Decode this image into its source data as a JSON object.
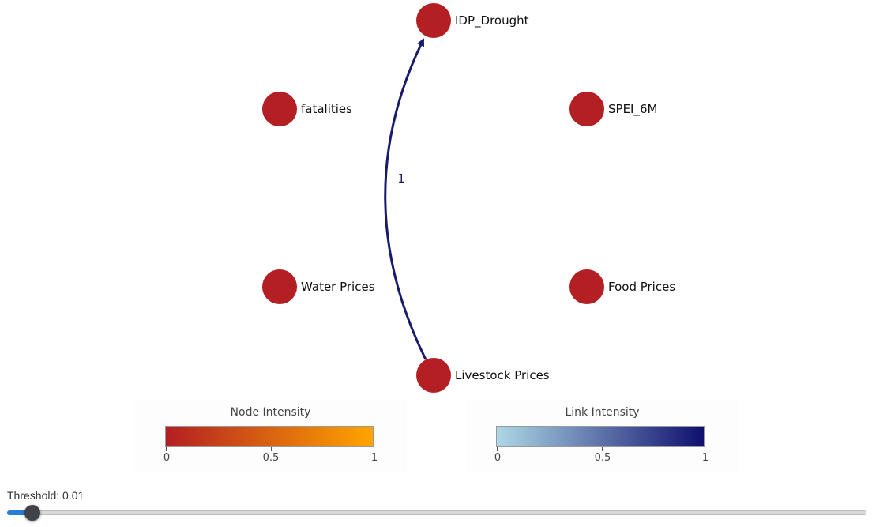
{
  "graph": {
    "nodes": [
      {
        "id": "idp",
        "label": "IDP_Drought",
        "color": "#b31f22"
      },
      {
        "id": "fatalities",
        "label": "fatalities",
        "color": "#b31f22"
      },
      {
        "id": "spei",
        "label": "SPEI_6M",
        "color": "#b31f22"
      },
      {
        "id": "water",
        "label": "Water Prices",
        "color": "#b31f22"
      },
      {
        "id": "food",
        "label": "Food Prices",
        "color": "#b31f22"
      },
      {
        "id": "livestock",
        "label": "Livestock Prices",
        "color": "#b31f22"
      }
    ],
    "edges": [
      {
        "source": "livestock",
        "target": "idp",
        "label": "1",
        "color": "#1a1a6e"
      }
    ]
  },
  "legends": {
    "node": {
      "title": "Node Intensity",
      "ticks": [
        "0",
        "0.5",
        "1"
      ],
      "color_low": "#b31f22",
      "color_high": "#ffa500"
    },
    "link": {
      "title": "Link Intensity",
      "ticks": [
        "0",
        "0.5",
        "1"
      ],
      "color_low": "#add8e6",
      "color_high": "#0f0f6e"
    }
  },
  "threshold": {
    "label": "Threshold: 0.01",
    "value": 0.01,
    "min": 0,
    "max": 1
  }
}
